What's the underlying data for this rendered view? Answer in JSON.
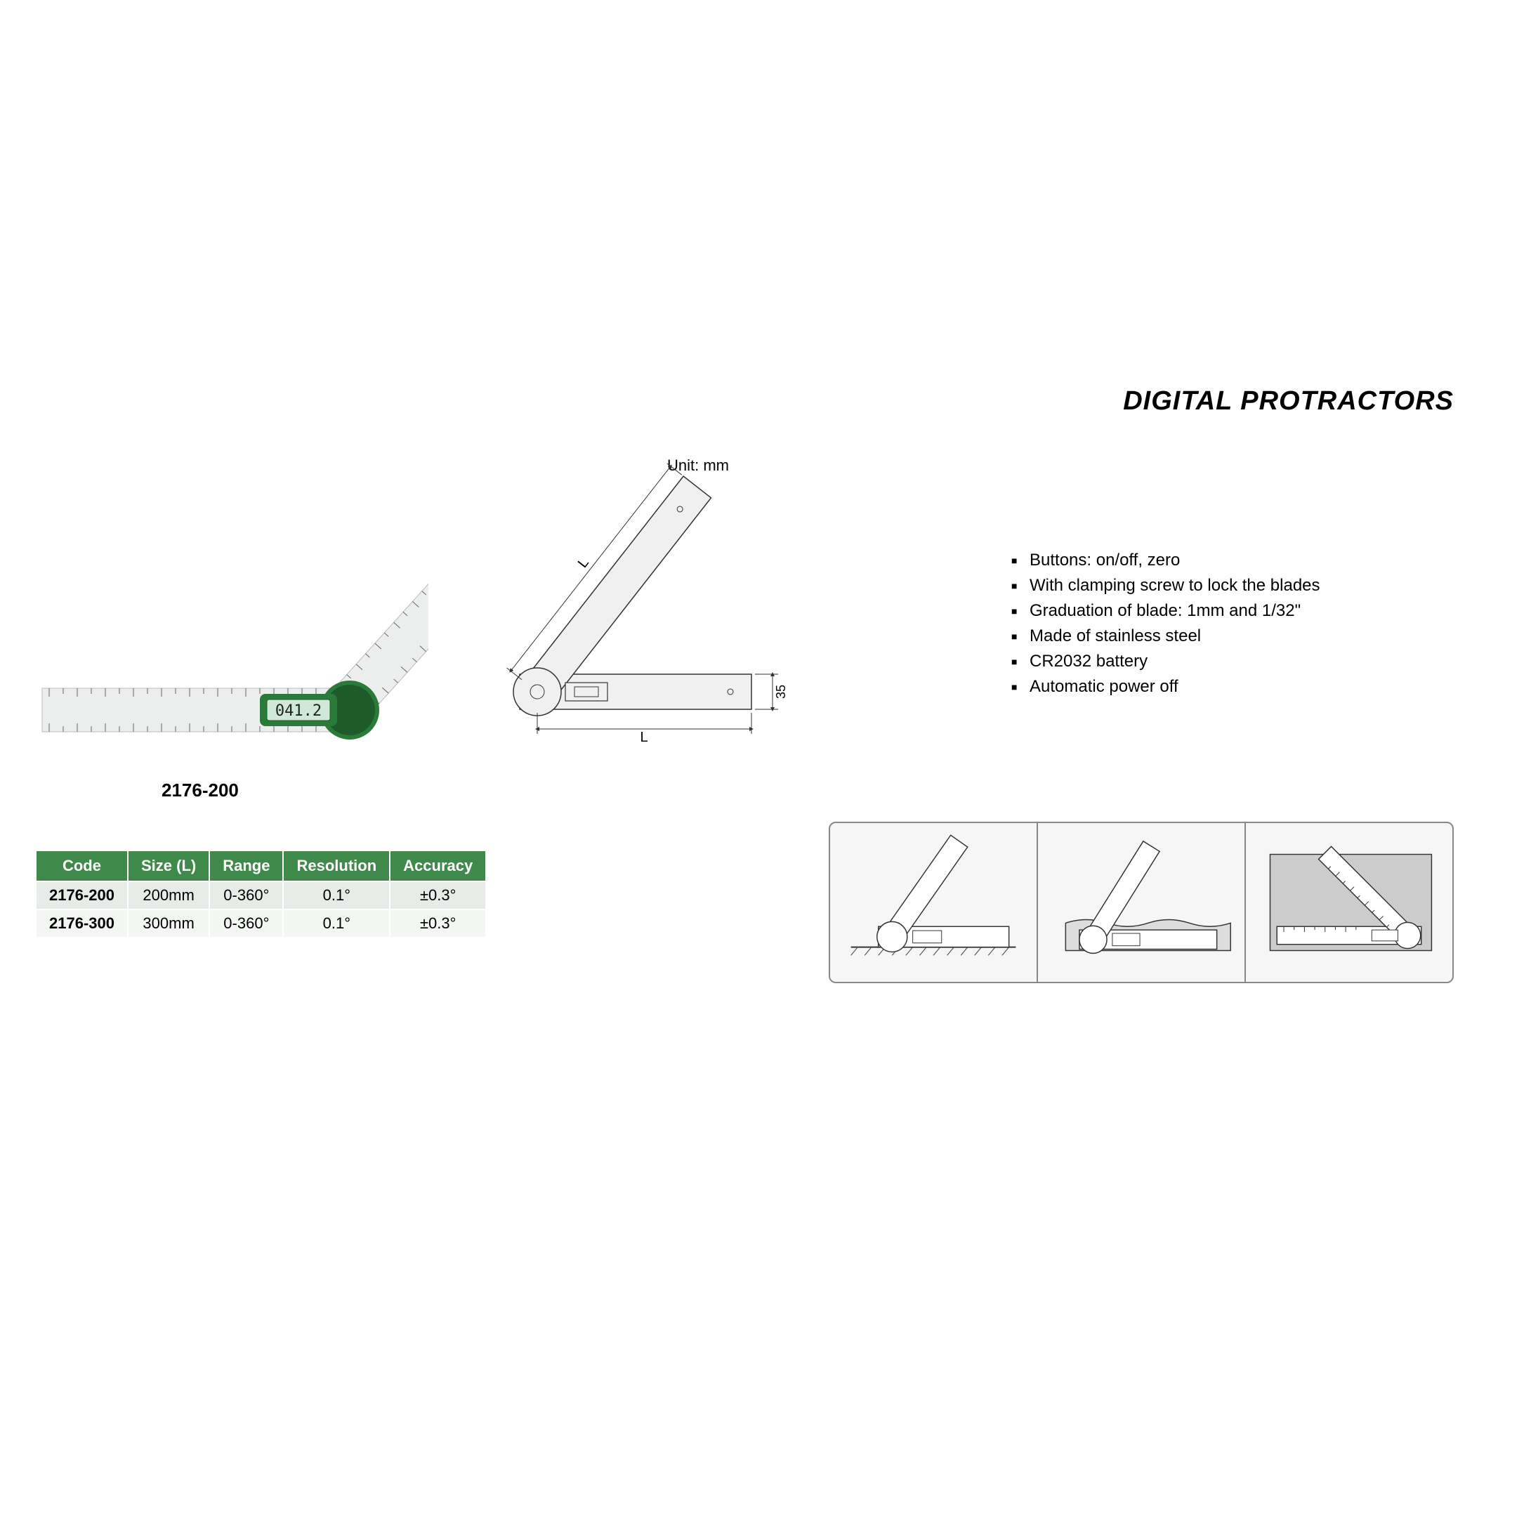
{
  "title": "DIGITAL PROTRACTORS",
  "product_label": "2176-200",
  "unit_label": "Unit: mm",
  "display_reading": "041.2",
  "dim_height": "35",
  "dim_horiz": "L",
  "dim_diag": "L",
  "features": [
    "Buttons: on/off, zero",
    "With clamping screw to lock the blades",
    "Graduation of blade: 1mm and 1/32\"",
    "Made of stainless steel",
    "CR2032 battery",
    "Automatic power off"
  ],
  "table": {
    "header_bg": "#3f8a4a",
    "row_odd_bg": "#e8ece8",
    "row_even_bg": "#f4f6f4",
    "columns": [
      "Code",
      "Size (L)",
      "Range",
      "Resolution",
      "Accuracy"
    ],
    "rows": [
      [
        "2176-200",
        "200mm",
        "0-360°",
        "0.1°",
        "±0.3°"
      ],
      [
        "2176-300",
        "300mm",
        "0-360°",
        "0.1°",
        "±0.3°"
      ]
    ]
  },
  "colors": {
    "ruler_fill": "#e8e8ea",
    "ruler_stroke": "#999",
    "hub_green": "#2a7a3a",
    "hub_green_dark": "#1e5a2a",
    "lcd_bg": "#cfe8d8",
    "lcd_text": "#222",
    "drawing_stroke": "#333",
    "drawing_fill": "#f0f0f0",
    "hatch": "#555"
  }
}
